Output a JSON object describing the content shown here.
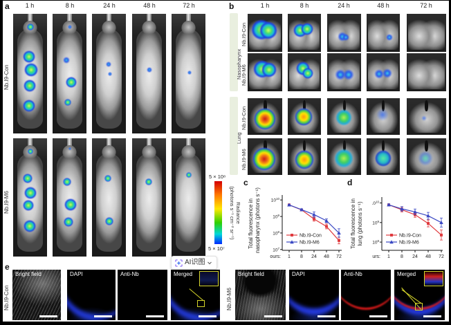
{
  "figure": {
    "panel_a": {
      "label": "a",
      "timepoints": [
        "1 h",
        "8 h",
        "24 h",
        "48 h",
        "72 h"
      ],
      "rows": [
        {
          "label": "Nb.I9-Con",
          "blobs": [
            [
              [
                50,
                11,
                5,
                "g"
              ],
              [
                46,
                36,
                9,
                "g"
              ],
              [
                53,
                47,
                10,
                "g"
              ],
              [
                48,
                60,
                9,
                "g"
              ],
              [
                46,
                77,
                9,
                "g"
              ]
            ],
            [
              [
                50,
                11,
                3,
                "b"
              ],
              [
                41,
                39,
                5,
                "b"
              ],
              [
                55,
                57,
                8,
                "g"
              ],
              [
                45,
                74,
                5,
                "g"
              ]
            ],
            [
              [
                48,
                42,
                4,
                "b"
              ],
              [
                53,
                50,
                3,
                "b"
              ]
            ],
            [
              [
                50,
                47,
                4,
                "b"
              ]
            ],
            [
              [
                53,
                49,
                3,
                "b"
              ]
            ]
          ]
        },
        {
          "label": "Nb.I9-M6",
          "blobs": [
            [
              [
                50,
                11,
                4,
                "g"
              ],
              [
                43,
                34,
                7,
                "g"
              ],
              [
                50,
                46,
                9,
                "g"
              ],
              [
                45,
                57,
                8,
                "g"
              ],
              [
                49,
                74,
                9,
                "g"
              ]
            ],
            [
              [
                50,
                9,
                2,
                "b"
              ],
              [
                43,
                37,
                6,
                "g"
              ],
              [
                53,
                56,
                9,
                "g"
              ],
              [
                47,
                71,
                7,
                "g"
              ]
            ],
            [
              [
                46,
                34,
                5,
                "g"
              ],
              [
                50,
                70,
                6,
                "g"
              ]
            ],
            [
              [
                48,
                37,
                5,
                "g"
              ]
            ],
            [
              [
                50,
                31,
                4,
                "g"
              ]
            ]
          ]
        }
      ],
      "colorbar": {
        "max": "5 × 10⁸",
        "min": "5 × 10⁷",
        "title": "Radiance",
        "units": "(photons s⁻¹ cm⁻² sr⁻¹)"
      }
    },
    "panel_b": {
      "label": "b",
      "timepoints": [
        "1 h",
        "8 h",
        "24 h",
        "48 h",
        "72 h"
      ],
      "groups": [
        {
          "label": "Nasopharynx",
          "rows": [
            {
              "label": "Nb.I9-Con",
              "heat": [
                [
                  [
                    40,
                    42,
                    15,
                    "g"
                  ],
                  [
                    60,
                    44,
                    13,
                    "g"
                  ]
                ],
                [
                  [
                    38,
                    44,
                    10,
                    "g"
                  ],
                  [
                    58,
                    40,
                    9,
                    "g"
                  ]
                ],
                [
                  [
                    44,
                    60,
                    7,
                    "b"
                  ],
                  [
                    56,
                    62,
                    5,
                    "b"
                  ]
                ],
                [
                  [
                    68,
                    62,
                    5,
                    "b"
                  ]
                ],
                []
              ]
            },
            {
              "label": "Nb.I9-M6",
              "heat": [
                [
                  [
                    42,
                    42,
                    13,
                    "g"
                  ],
                  [
                    62,
                    44,
                    11,
                    "g"
                  ]
                ],
                [
                  [
                    46,
                    40,
                    10,
                    "g"
                  ],
                  [
                    60,
                    52,
                    8,
                    "g"
                  ]
                ],
                [
                  [
                    38,
                    56,
                    8,
                    "b"
                  ],
                  [
                    64,
                    56,
                    8,
                    "b"
                  ]
                ],
                [
                  [
                    38,
                    55,
                    7,
                    "b"
                  ],
                  [
                    62,
                    52,
                    7,
                    "b"
                  ]
                ],
                []
              ]
            }
          ]
        },
        {
          "label": "Lung",
          "rows": [
            {
              "label": "Nb.I9-Con",
              "heat": [
                [
                  [
                    50,
                    56,
                    16,
                    "red"
                  ]
                ],
                [
                  [
                    48,
                    50,
                    13,
                    "orange"
                  ]
                ],
                [
                  [
                    48,
                    52,
                    12,
                    "green"
                  ]
                ],
                [
                  [
                    48,
                    46,
                    9,
                    "bluefaint"
                  ]
                ],
                [
                  [
                    44,
                    55,
                    4,
                    "bluefaint"
                  ]
                ]
              ]
            },
            {
              "label": "Nb.I9-M6",
              "heat": [
                [
                  [
                    48,
                    56,
                    17,
                    "red"
                  ]
                ],
                [
                  [
                    50,
                    58,
                    14,
                    "orange"
                  ]
                ],
                [
                  [
                    48,
                    55,
                    14,
                    "green"
                  ]
                ],
                [
                  [
                    50,
                    55,
                    12,
                    "teal"
                  ]
                ],
                [
                  [
                    48,
                    55,
                    11,
                    "tealfaint"
                  ]
                ]
              ]
            }
          ]
        }
      ]
    },
    "panel_c": {
      "label": "c"
    },
    "panel_d": {
      "label": "d"
    },
    "panel_e": {
      "label": "e",
      "channels": [
        "Bright field",
        "DAPI",
        "Anti-Nb",
        "Merged"
      ],
      "groups": [
        {
          "label": "Nb.I9-Con"
        },
        {
          "label": "Nb.I9-M6"
        }
      ]
    }
  },
  "overlay_button": {
    "label": "AI识图"
  },
  "colors": {
    "red": "#e03a3e",
    "blue": "#3947c3",
    "sidebar_green": "#e9efdf"
  },
  "chart_data": [
    {
      "id": "c",
      "type": "line",
      "x": [
        1,
        8,
        24,
        48,
        72
      ],
      "xtick_labels": [
        "1",
        "8",
        "24",
        "48",
        "72"
      ],
      "x_prefix": "Hours:",
      "ylabel_lines": [
        "Total fluorescence in",
        "nasopharynx (photons s⁻¹)"
      ],
      "yticks": [
        7,
        8,
        9,
        10
      ],
      "ytick_labels": [
        "10⁷",
        "10⁸",
        "10⁹",
        "10¹⁰"
      ],
      "log_range": [
        6.95,
        10.3
      ],
      "grid": false,
      "legend_position": "bottom-left",
      "series": [
        {
          "name": "Nb.I9-Con",
          "color": "#e03a3e",
          "marker": "square",
          "values": [
            5000000000.0,
            2500000000.0,
            700000000.0,
            250000000.0,
            35000000.0
          ],
          "err_factor": [
            1.1,
            1.12,
            1.35,
            1.4,
            1.6
          ]
        },
        {
          "name": "Nb.I9-M6",
          "color": "#3947c3",
          "marker": "triangle",
          "values": [
            5000000000.0,
            2600000000.0,
            1300000000.0,
            550000000.0,
            100000000.0
          ],
          "err_factor": [
            1.1,
            1.12,
            1.45,
            1.3,
            1.8
          ]
        }
      ]
    },
    {
      "id": "d",
      "type": "line",
      "x": [
        1,
        8,
        24,
        48,
        72
      ],
      "xtick_labels": [
        "1",
        "8",
        "24",
        "48",
        "72"
      ],
      "x_prefix": "Hours:",
      "ylabel_lines": [
        "Total fluorescence in",
        "lung (photons s⁻¹)"
      ],
      "yticks": [
        8,
        9,
        10
      ],
      "ytick_labels": [
        "10⁸",
        "10⁹",
        "10¹⁰"
      ],
      "log_range": [
        7.58,
        10.3
      ],
      "grid": false,
      "legend_position": "bottom-left",
      "series": [
        {
          "name": "Nb.I9-Con",
          "color": "#e03a3e",
          "marker": "square",
          "values": [
            8000000000.0,
            4500000000.0,
            2500000000.0,
            900000000.0,
            230000000.0
          ],
          "err_factor": [
            1.12,
            1.3,
            1.35,
            1.5,
            1.8
          ]
        },
        {
          "name": "Nb.I9-M6",
          "color": "#3947c3",
          "marker": "triangle",
          "values": [
            8000000000.0,
            5000000000.0,
            3500000000.0,
            2200000000.0,
            1000000000.0
          ],
          "err_factor": [
            1.12,
            1.3,
            1.4,
            1.5,
            1.7
          ]
        }
      ]
    }
  ]
}
